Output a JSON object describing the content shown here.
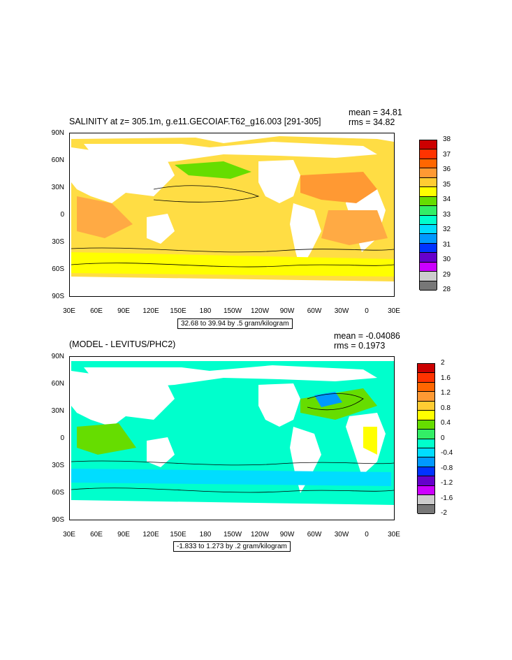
{
  "panels": [
    {
      "title": "SALINITY at z= 305.1m, g.e11.GECOIAF.T62_g16.003 [291-305]",
      "mean": "mean = 34.81",
      "rms": "rms = 34.82",
      "range_text": "32.68 to 39.94 by .5 gram/kilogram",
      "colorbar_labels": [
        "38",
        "37",
        "36",
        "35",
        "34",
        "33",
        "32",
        "31",
        "30",
        "29",
        "28"
      ],
      "colorbar_colors": [
        "#cc0000",
        "#ff3300",
        "#ff6600",
        "#ff9933",
        "#ffcc33",
        "#ffff00",
        "#66dd00",
        "#33ee66",
        "#00ffcc",
        "#00ddff",
        "#0099ff",
        "#0033ff",
        "#6600cc",
        "#cc00ff",
        "#cccccc",
        "#777777"
      ]
    },
    {
      "title": "(MODEL - LEVITUS/PHC2)",
      "mean": "mean = -0.04086",
      "rms": "rms = 0.1973",
      "range_text": "-1.833 to 1.273 by .2 gram/kilogram",
      "colorbar_labels": [
        "2",
        "1.6",
        "1.2",
        "0.8",
        "0.4",
        "0",
        "-0.4",
        "-0.8",
        "-1.2",
        "-1.6",
        "-2"
      ],
      "colorbar_colors": [
        "#cc0000",
        "#ff3300",
        "#ff6600",
        "#ff9933",
        "#ffcc33",
        "#ffff00",
        "#66dd00",
        "#33ee66",
        "#00ffcc",
        "#00ddff",
        "#0099ff",
        "#0033ff",
        "#6600cc",
        "#cc00ff",
        "#cccccc",
        "#777777"
      ]
    }
  ],
  "lat_labels": [
    "90N",
    "60N",
    "30N",
    "0",
    "30S",
    "60S",
    "90S"
  ],
  "lon_labels": [
    "30E",
    "60E",
    "90E",
    "120E",
    "150E",
    "180",
    "150W",
    "120W",
    "90W",
    "60W",
    "30W",
    "0",
    "30E"
  ]
}
